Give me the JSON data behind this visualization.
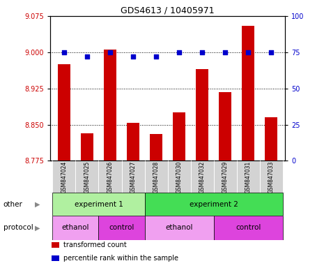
{
  "title": "GDS4613 / 10405971",
  "samples": [
    "GSM847024",
    "GSM847025",
    "GSM847026",
    "GSM847027",
    "GSM847028",
    "GSM847030",
    "GSM847032",
    "GSM847029",
    "GSM847031",
    "GSM847033"
  ],
  "bar_values": [
    8.975,
    8.832,
    9.005,
    8.854,
    8.831,
    8.876,
    8.965,
    8.918,
    9.055,
    8.866
  ],
  "percentile_values": [
    75,
    72,
    75,
    72,
    72,
    75,
    75,
    75,
    75,
    75
  ],
  "bar_color": "#cc0000",
  "dot_color": "#0000cc",
  "ylim_left": [
    8.775,
    9.075
  ],
  "ylim_right": [
    0,
    100
  ],
  "yticks_left": [
    8.775,
    8.85,
    8.925,
    9.0,
    9.075
  ],
  "yticks_right": [
    0,
    25,
    50,
    75,
    100
  ],
  "hlines": [
    9.0,
    8.925,
    8.85
  ],
  "experiment_groups": [
    {
      "label": "experiment 1",
      "start": 0,
      "end": 4,
      "color": "#b0f0a0"
    },
    {
      "label": "experiment 2",
      "start": 4,
      "end": 10,
      "color": "#44dd55"
    }
  ],
  "protocol_groups": [
    {
      "label": "ethanol",
      "start": 0,
      "end": 2,
      "color": "#f0a0f0"
    },
    {
      "label": "control",
      "start": 2,
      "end": 4,
      "color": "#dd44dd"
    },
    {
      "label": "ethanol",
      "start": 4,
      "end": 7,
      "color": "#f0a0f0"
    },
    {
      "label": "control",
      "start": 7,
      "end": 10,
      "color": "#dd44dd"
    }
  ],
  "legend_items": [
    {
      "label": "transformed count",
      "color": "#cc0000"
    },
    {
      "label": "percentile rank within the sample",
      "color": "#0000cc"
    }
  ],
  "plot_bg_color": "#ffffff",
  "sample_row_color": "#d3d3d3",
  "fig_width": 4.65,
  "fig_height": 3.84,
  "dpi": 100
}
